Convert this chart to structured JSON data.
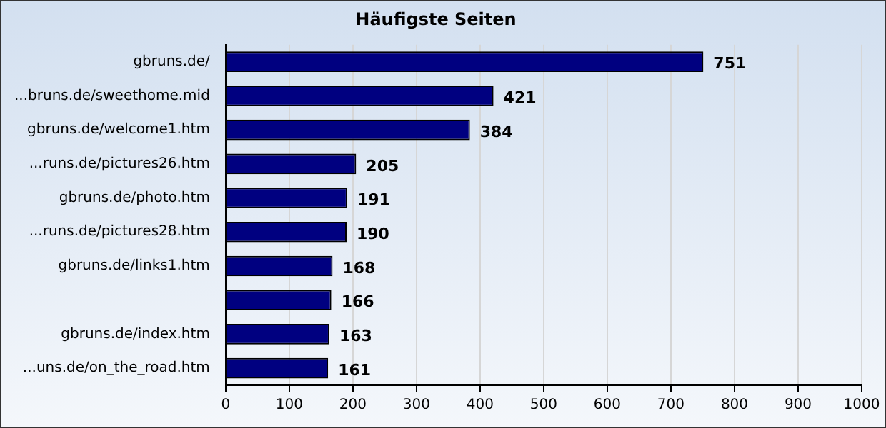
{
  "chart_data": {
    "type": "bar",
    "orientation": "horizontal",
    "title": "Häufigste Seiten",
    "categories": [
      "gbruns.de/",
      "...bruns.de/sweethome.mid",
      "gbruns.de/welcome1.htm",
      "...runs.de/pictures26.htm",
      "gbruns.de/photo.htm",
      "...runs.de/pictures28.htm",
      "gbruns.de/links1.htm",
      null,
      "gbruns.de/index.htm",
      "...uns.de/on_the_road.htm"
    ],
    "values": [
      751,
      421,
      384,
      205,
      191,
      190,
      168,
      166,
      163,
      161
    ],
    "color": "#000080",
    "xlim": [
      0,
      1000
    ],
    "xticks": [
      0,
      100,
      200,
      300,
      400,
      500,
      600,
      700,
      800,
      900,
      1000
    ],
    "grid": "x",
    "data_labels": true,
    "legend": false
  }
}
